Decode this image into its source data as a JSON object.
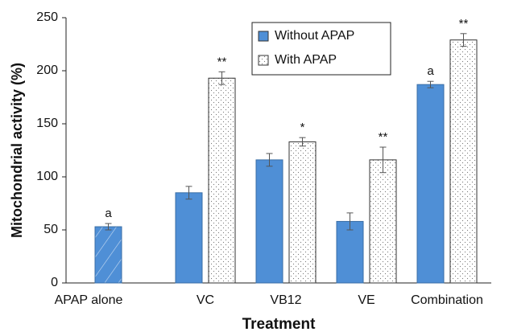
{
  "chart_data": {
    "type": "bar",
    "ylabel": "Mitochondrial activity (%)",
    "xlabel": "Treatment",
    "categories": [
      "APAP alone",
      "VC",
      "VB12",
      "VE",
      "Combination"
    ],
    "series": [
      {
        "name": "Without APAP",
        "color": "#4f8fd6",
        "patterns": [
          "hatch",
          "solid",
          "solid",
          "solid",
          "solid"
        ],
        "values": [
          53,
          85,
          116,
          58,
          187
        ],
        "errors": [
          3,
          6,
          6,
          8,
          3
        ],
        "annotations": [
          "a",
          null,
          null,
          null,
          "a"
        ]
      },
      {
        "name": "With APAP",
        "color": "#ffffff",
        "patterns": [
          null,
          "dots",
          "dots",
          "dots",
          "dots"
        ],
        "values": [
          null,
          193,
          133,
          116,
          229
        ],
        "errors": [
          null,
          6,
          4,
          12,
          6
        ],
        "annotations": [
          null,
          "**",
          "*",
          "**",
          "**"
        ]
      }
    ],
    "ylim": [
      0,
      250
    ],
    "yticks": [
      0,
      50,
      100,
      150,
      200,
      250
    ],
    "legend": "upper-right",
    "grid": false
  }
}
